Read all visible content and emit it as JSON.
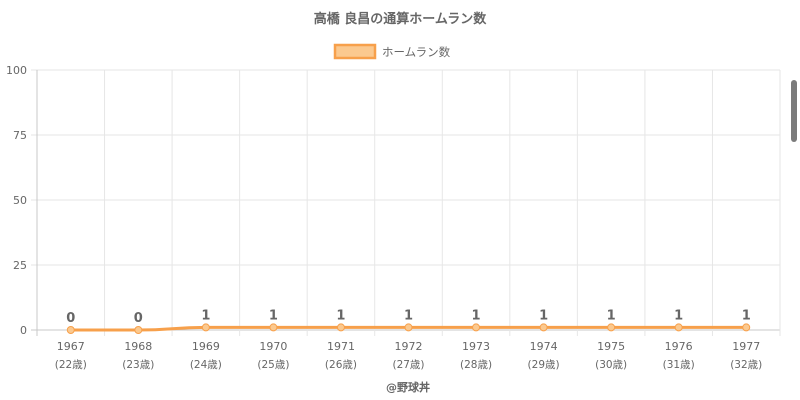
{
  "chart_data": {
    "type": "line",
    "title": "高橋 良昌の通算ホームラン数",
    "categories": [
      "1967",
      "1968",
      "1969",
      "1970",
      "1971",
      "1972",
      "1973",
      "1974",
      "1975",
      "1976",
      "1977"
    ],
    "sublabels": [
      "(22歳)",
      "(23歳)",
      "(24歳)",
      "(25歳)",
      "(26歳)",
      "(27歳)",
      "(28歳)",
      "(29歳)",
      "(30歳)",
      "(31歳)",
      "(32歳)"
    ],
    "series": [
      {
        "name": "ホームラン数",
        "values": [
          0,
          0,
          1,
          1,
          1,
          1,
          1,
          1,
          1,
          1,
          1
        ],
        "color": "#f7a04b",
        "fill": "#fbc98f"
      }
    ],
    "yticks": [
      0,
      25,
      50,
      75,
      100
    ],
    "ylim": [
      0,
      100
    ],
    "grid": true,
    "legend": "top-center",
    "data_labels": true,
    "credit": "@野球丼"
  }
}
